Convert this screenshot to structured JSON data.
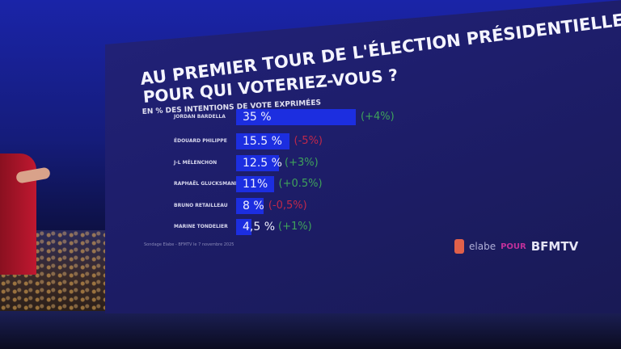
{
  "chart_data": {
    "type": "bar",
    "orientation": "horizontal",
    "title": "AU PREMIER TOUR DE L'ÉLECTION PRÉSIDENTIELLE",
    "subtitle": "POUR QUI VOTERIEZ-VOUS ?",
    "unit_label": "EN % DES INTENTIONS DE VOTE EXPRIMÉES",
    "categories": [
      "JORDAN BARDELLA",
      "ÉDOUARD PHILIPPE",
      "J-L MÉLENCHON",
      "RAPHAËL GLUCKSMANN",
      "BRUNO RETAILLEAU",
      "MARINE TONDELIER"
    ],
    "values": [
      35,
      15.5,
      12.5,
      11,
      8,
      4.5
    ],
    "value_labels": [
      "35 %",
      "15.5 %",
      "12.5 %",
      "11%",
      "8 %",
      "4,5 %"
    ],
    "changes": [
      "(+4%)",
      "(-5%)",
      "(+3%)",
      "(+0.5%)",
      "(-0,5%)",
      "(+1%)"
    ],
    "change_colors": [
      "#3fa25a",
      "#c0284a",
      "#3fa25a",
      "#3fa25a",
      "#c0284a",
      "#3fa25a"
    ],
    "bar_color": "#1c2ee0",
    "xlim": [
      0,
      35
    ],
    "source": "Sondage Elabe - BFMTV le 7 novembre 2025"
  },
  "branding": {
    "pollster": "elabe",
    "connector": "POUR",
    "channel": "BFMTV"
  }
}
